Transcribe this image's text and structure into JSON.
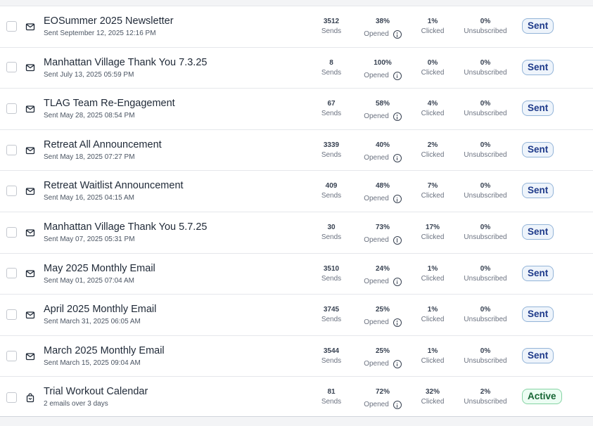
{
  "labels": {
    "sends": "Sends",
    "opened": "Opened",
    "clicked": "Clicked",
    "unsubscribed": "Unsubscribed"
  },
  "icons": {
    "email": "envelope-icon",
    "sequence": "bag-icon",
    "info": "info-icon"
  },
  "colors": {
    "sent_badge_bg": "#eef4fb",
    "sent_badge_text": "#1e3a8a",
    "active_badge_bg": "#ecfdf3",
    "active_badge_text": "#166534"
  },
  "campaigns": [
    {
      "title": "EOSummer 2025 Newsletter",
      "subtitle": "Sent September 12, 2025 12:16 PM",
      "sends": "3512",
      "opened": "38%",
      "clicked": "1%",
      "unsubscribed": "0%",
      "status": "Sent",
      "type": "email"
    },
    {
      "title": "Manhattan Village Thank You 7.3.25",
      "subtitle": "Sent July 13, 2025 05:59 PM",
      "sends": "8",
      "opened": "100%",
      "clicked": "0%",
      "unsubscribed": "0%",
      "status": "Sent",
      "type": "email"
    },
    {
      "title": "TLAG Team Re-Engagement",
      "subtitle": "Sent May 28, 2025 08:54 PM",
      "sends": "67",
      "opened": "58%",
      "clicked": "4%",
      "unsubscribed": "0%",
      "status": "Sent",
      "type": "email"
    },
    {
      "title": "Retreat All Announcement",
      "subtitle": "Sent May 18, 2025 07:27 PM",
      "sends": "3339",
      "opened": "40%",
      "clicked": "2%",
      "unsubscribed": "0%",
      "status": "Sent",
      "type": "email"
    },
    {
      "title": "Retreat Waitlist Announcement",
      "subtitle": "Sent May 16, 2025 04:15 AM",
      "sends": "409",
      "opened": "48%",
      "clicked": "7%",
      "unsubscribed": "0%",
      "status": "Sent",
      "type": "email"
    },
    {
      "title": "Manhattan Village Thank You 5.7.25",
      "subtitle": "Sent May 07, 2025 05:31 PM",
      "sends": "30",
      "opened": "73%",
      "clicked": "17%",
      "unsubscribed": "0%",
      "status": "Sent",
      "type": "email"
    },
    {
      "title": "May 2025 Monthly Email",
      "subtitle": "Sent May 01, 2025 07:04 AM",
      "sends": "3510",
      "opened": "24%",
      "clicked": "1%",
      "unsubscribed": "0%",
      "status": "Sent",
      "type": "email"
    },
    {
      "title": "April 2025 Monthly Email",
      "subtitle": "Sent March 31, 2025 06:05 AM",
      "sends": "3745",
      "opened": "25%",
      "clicked": "1%",
      "unsubscribed": "0%",
      "status": "Sent",
      "type": "email"
    },
    {
      "title": "March 2025 Monthly Email",
      "subtitle": "Sent March 15, 2025 09:04 AM",
      "sends": "3544",
      "opened": "25%",
      "clicked": "1%",
      "unsubscribed": "0%",
      "status": "Sent",
      "type": "email"
    },
    {
      "title": "Trial Workout Calendar",
      "subtitle": "2 emails over 3 days",
      "sends": "81",
      "opened": "72%",
      "clicked": "32%",
      "unsubscribed": "2%",
      "status": "Active",
      "type": "sequence"
    }
  ]
}
